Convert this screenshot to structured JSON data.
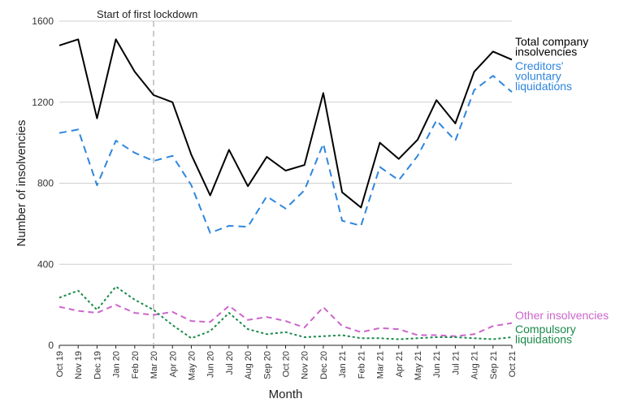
{
  "chart_data": {
    "type": "line",
    "xlabel": "Month",
    "ylabel": "Number of insolvencies",
    "ylim": [
      0,
      1600
    ],
    "yticks": [
      0,
      400,
      800,
      1200,
      1600
    ],
    "grid": "horizontal",
    "categories": [
      "Oct 19",
      "Nov 19",
      "Dec 19",
      "Jan 20",
      "Feb 20",
      "Mar 20",
      "Apr 20",
      "May 20",
      "Jun 20",
      "Jul 20",
      "Aug 20",
      "Sep 20",
      "Oct 20",
      "Nov 20",
      "Dec 20",
      "Jan 21",
      "Feb 21",
      "Mar 21",
      "Apr 21",
      "May 21",
      "Jun 21",
      "Jul 21",
      "Aug 21",
      "Sep 21",
      "Oct 21"
    ],
    "annotation": {
      "label": "Start of first lockdown",
      "x_category": "Mar 20"
    },
    "series": [
      {
        "name": "Total company insolvencies",
        "label_lines": [
          "Total company",
          "insolvencies"
        ],
        "color": "#000000",
        "dash": "solid",
        "values": [
          1480,
          1510,
          1120,
          1510,
          1350,
          1235,
          1200,
          940,
          740,
          965,
          785,
          930,
          862,
          890,
          1245,
          755,
          680,
          1000,
          920,
          1015,
          1210,
          1095,
          1350,
          1450,
          1410
        ]
      },
      {
        "name": "Creditors' voluntary liquidations",
        "label_lines": [
          "Creditors'",
          "voluntary",
          "liquidations"
        ],
        "color": "#2e86de",
        "dash": "long",
        "values": [
          1048,
          1065,
          790,
          1010,
          950,
          910,
          935,
          790,
          555,
          590,
          585,
          735,
          675,
          765,
          995,
          615,
          590,
          880,
          815,
          935,
          1110,
          1010,
          1260,
          1330,
          1250
        ]
      },
      {
        "name": "Other insolvencies",
        "label_lines": [
          "Other insolvencies"
        ],
        "color": "#cc66cc",
        "dash": "medium",
        "values": [
          190,
          170,
          160,
          200,
          160,
          150,
          165,
          120,
          115,
          195,
          125,
          140,
          120,
          88,
          188,
          95,
          65,
          85,
          80,
          50,
          50,
          45,
          55,
          95,
          110
        ]
      },
      {
        "name": "Compulsory liquidations",
        "label_lines": [
          "Compulsory",
          "liquidations"
        ],
        "color": "#1a8a4a",
        "dash": "dotted",
        "values": [
          235,
          270,
          175,
          290,
          225,
          175,
          100,
          35,
          70,
          160,
          80,
          55,
          65,
          40,
          45,
          50,
          35,
          35,
          30,
          35,
          40,
          40,
          35,
          30,
          40
        ]
      }
    ]
  }
}
